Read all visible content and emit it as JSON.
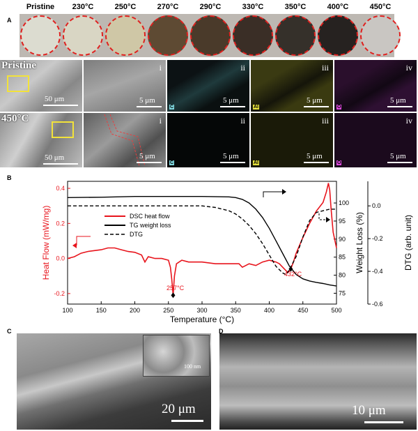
{
  "panels": {
    "a": "A",
    "b": "B",
    "c": "C",
    "d": "D"
  },
  "panel_a": {
    "labels": [
      "Pristine",
      "230°C",
      "250°C",
      "270°C",
      "290°C",
      "330°C",
      "350°C",
      "400°C",
      "450°C"
    ],
    "disc_colors": [
      "#dcdcd0",
      "#d9d6c4",
      "#cfc7a6",
      "#5e4a33",
      "#4a3a2a",
      "#3a2e26",
      "#35302a",
      "#262220",
      "#c9c6c2"
    ]
  },
  "sem_grid": {
    "row_labels": [
      "Pristine",
      "450°C"
    ],
    "romans": [
      "i",
      "ii",
      "iii",
      "iv"
    ],
    "elements": [
      "C",
      "Al",
      "O"
    ],
    "scale_large": "50 μm",
    "scale_small": "5 μm"
  },
  "chart_data": {
    "type": "line",
    "xlabel": "Temperature (°C)",
    "ylabel_left": "Heat Flow (mW/mg)",
    "ylabel_right1": "Weight Loss (%)",
    "ylabel_right2": "DTG (arb. unit)",
    "x_range": [
      100,
      500
    ],
    "x_ticks": [
      100,
      150,
      200,
      250,
      300,
      350,
      400,
      450,
      500
    ],
    "y_left_range": [
      -0.26,
      0.44
    ],
    "y_left_ticks": [
      -0.2,
      0.0,
      0.2,
      0.4
    ],
    "y_right1_range": [
      72,
      106
    ],
    "y_right1_ticks": [
      75,
      80,
      85,
      90,
      95,
      100
    ],
    "y_right2_range": [
      -0.6,
      0.15
    ],
    "y_right2_ticks": [
      -0.6,
      -0.4,
      -0.2,
      0.0
    ],
    "annotations": [
      "257°C",
      "432°C"
    ],
    "series": [
      {
        "name": "DSC heat flow",
        "axis": "left",
        "color": "#e8141c",
        "dash": "",
        "x": [
          100,
          110,
          120,
          130,
          140,
          150,
          160,
          170,
          180,
          190,
          200,
          210,
          215,
          220,
          230,
          240,
          250,
          253,
          255,
          257,
          259,
          262,
          270,
          280,
          300,
          320,
          340,
          355,
          360,
          370,
          380,
          390,
          400,
          410,
          415,
          420,
          425,
          428,
          432,
          436,
          440,
          450,
          460,
          470,
          480,
          485,
          488,
          490,
          492,
          495,
          500
        ],
        "y": [
          0.0,
          0.01,
          0.03,
          0.04,
          0.045,
          0.05,
          0.06,
          0.06,
          0.05,
          0.04,
          0.035,
          0.02,
          -0.02,
          0.01,
          0.0,
          0.0,
          -0.01,
          -0.05,
          -0.12,
          -0.21,
          -0.1,
          -0.03,
          -0.01,
          -0.02,
          -0.02,
          -0.03,
          -0.03,
          -0.03,
          -0.05,
          -0.03,
          -0.04,
          -0.02,
          -0.01,
          -0.02,
          -0.03,
          -0.05,
          -0.07,
          -0.08,
          -0.06,
          -0.02,
          0.03,
          0.12,
          0.2,
          0.27,
          0.32,
          0.38,
          0.43,
          0.39,
          0.28,
          0.15,
          0.06
        ]
      },
      {
        "name": "TG weight loss",
        "axis": "right1",
        "color": "#000000",
        "dash": "",
        "x": [
          100,
          150,
          200,
          250,
          300,
          340,
          350,
          360,
          370,
          380,
          390,
          400,
          410,
          420,
          430,
          440,
          450,
          460,
          470,
          480,
          490,
          500
        ],
        "y": [
          101.5,
          101.6,
          101.8,
          101.8,
          101.8,
          101.7,
          101.5,
          101.0,
          100.0,
          98.3,
          96.0,
          93.0,
          89.5,
          86.0,
          82.5,
          80.2,
          79.0,
          78.4,
          78.0,
          77.7,
          77.3,
          77.0
        ]
      },
      {
        "name": "DTG",
        "axis": "right2",
        "color": "#000000",
        "dash": "5,3",
        "x": [
          100,
          150,
          200,
          250,
          300,
          320,
          340,
          350,
          360,
          370,
          380,
          390,
          400,
          410,
          420,
          425,
          430,
          440,
          450,
          460,
          470,
          480,
          490,
          500
        ],
        "y": [
          0.0,
          0.0,
          0.0,
          0.0,
          0.0,
          -0.01,
          -0.03,
          -0.05,
          -0.08,
          -0.12,
          -0.17,
          -0.23,
          -0.3,
          -0.37,
          -0.41,
          -0.42,
          -0.39,
          -0.31,
          -0.19,
          -0.09,
          -0.04,
          -0.03,
          -0.02,
          -0.02
        ]
      }
    ]
  },
  "panel_c": {
    "scale": "20 μm",
    "inset_scale": "100 nm"
  },
  "panel_d": {
    "scale": "10 μm"
  }
}
